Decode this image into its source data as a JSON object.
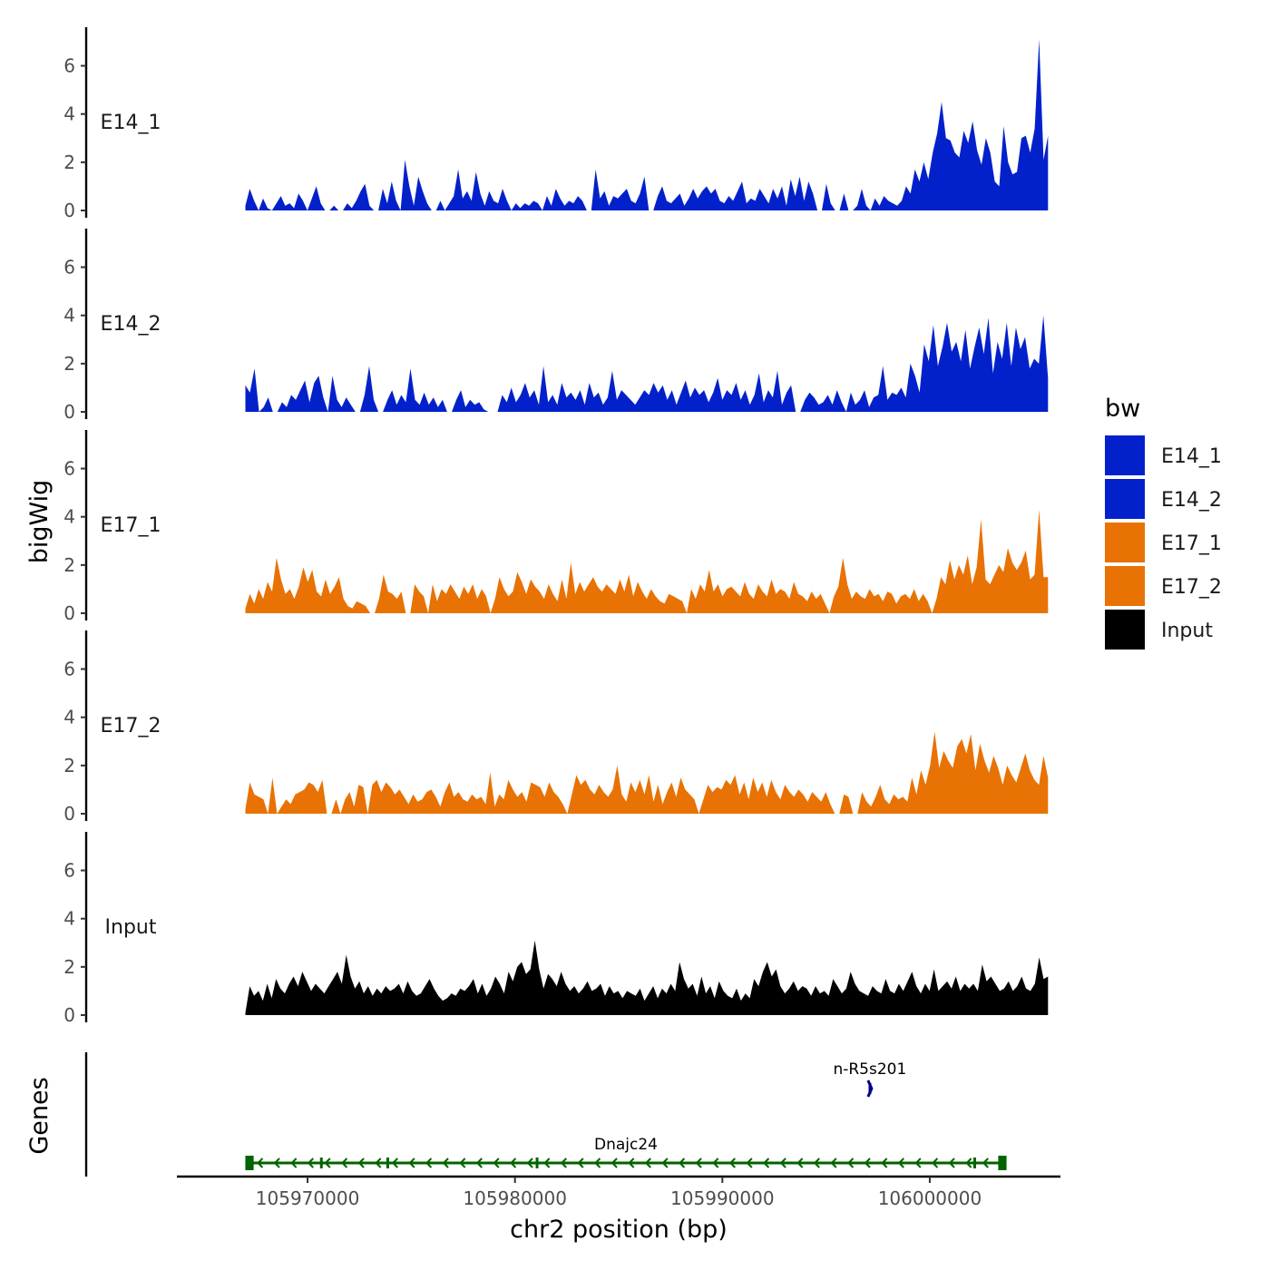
{
  "chart_data": {
    "type": "area",
    "title": "",
    "ylabel": "bigWig",
    "genes_label": "Genes",
    "xlabel": "chr2 position (bp)",
    "xlim": [
      105963700,
      106006300
    ],
    "data_x_range": [
      105967000,
      106005700
    ],
    "ylim": [
      -0.3,
      7.6
    ],
    "yticks": [
      0,
      2,
      4,
      6
    ],
    "ytick_labels": [
      "0",
      "2",
      "4",
      "6"
    ],
    "xticks": [
      105970000,
      105980000,
      105990000,
      106000000
    ],
    "xtick_labels": [
      "105970000",
      "105980000",
      "105990000",
      "106000000"
    ],
    "legend": {
      "title": "bw",
      "position": "right",
      "entries": [
        {
          "label": "E14_1",
          "color": "#0321cb"
        },
        {
          "label": "E14_2",
          "color": "#0321cb"
        },
        {
          "label": "E17_1",
          "color": "#e87203"
        },
        {
          "label": "E17_2",
          "color": "#e87203"
        },
        {
          "label": "Input",
          "color": "#000000"
        }
      ]
    },
    "series": [
      {
        "name": "E14_1",
        "color": "#0321cb",
        "values": [
          0.2,
          0.9,
          0.4,
          0.0,
          0.5,
          0.1,
          0.0,
          0.3,
          0.6,
          0.2,
          0.3,
          0.1,
          0.7,
          0.4,
          0.0,
          0.5,
          1.0,
          0.3,
          0.0,
          0.0,
          0.2,
          0.0,
          0.0,
          0.3,
          0.1,
          0.4,
          0.8,
          1.1,
          0.2,
          0.0,
          0.0,
          0.9,
          0.3,
          1.2,
          0.4,
          0.0,
          2.1,
          1.0,
          0.2,
          1.4,
          0.8,
          0.3,
          0.0,
          0.0,
          0.4,
          0.0,
          0.3,
          0.6,
          1.7,
          0.5,
          0.8,
          0.4,
          1.6,
          0.7,
          0.2,
          0.8,
          0.4,
          0.3,
          0.9,
          0.4,
          0.0,
          0.3,
          0.1,
          0.3,
          0.2,
          0.4,
          0.3,
          0.0,
          0.6,
          0.2,
          0.9,
          0.5,
          0.2,
          0.4,
          0.3,
          0.6,
          0.4,
          0.0,
          0.0,
          1.7,
          0.5,
          0.8,
          0.2,
          0.6,
          0.5,
          0.7,
          0.9,
          0.4,
          0.3,
          0.7,
          1.4,
          0.0,
          0.0,
          0.6,
          1.0,
          0.4,
          0.3,
          0.5,
          0.7,
          0.2,
          0.5,
          0.9,
          0.5,
          0.8,
          1.0,
          0.7,
          0.9,
          0.4,
          0.3,
          0.6,
          0.4,
          0.8,
          1.2,
          0.3,
          0.5,
          0.4,
          0.9,
          0.6,
          0.3,
          0.9,
          0.5,
          1.0,
          0.2,
          1.3,
          0.6,
          1.4,
          0.4,
          1.2,
          0.7,
          0.0,
          0.0,
          1.1,
          0.3,
          0.0,
          0.0,
          0.7,
          0.0,
          0.0,
          0.2,
          0.9,
          0.2,
          0.0,
          0.5,
          0.2,
          0.6,
          0.4,
          0.3,
          0.2,
          0.4,
          1.0,
          0.7,
          1.7,
          1.2,
          2.0,
          1.3,
          2.4,
          3.2,
          4.5,
          3.0,
          2.9,
          2.4,
          2.2,
          3.3,
          2.8,
          3.7,
          2.5,
          1.9,
          3.0,
          2.4,
          1.2,
          1.0,
          3.5,
          2.0,
          1.5,
          1.6,
          3.0,
          3.1,
          2.4,
          3.4,
          7.1,
          2.1,
          3.1
        ]
      },
      {
        "name": "E14_2",
        "color": "#0321cb",
        "values": [
          1.1,
          0.8,
          1.8,
          0.0,
          0.2,
          0.6,
          0.0,
          0.0,
          0.4,
          0.2,
          0.7,
          0.5,
          0.9,
          1.3,
          0.4,
          1.2,
          1.5,
          0.6,
          0.0,
          1.5,
          0.5,
          0.2,
          0.6,
          0.3,
          0.0,
          0.0,
          0.7,
          1.9,
          0.5,
          0.0,
          0.0,
          0.5,
          0.9,
          0.3,
          0.7,
          0.4,
          1.8,
          0.5,
          0.3,
          0.8,
          0.3,
          0.6,
          0.2,
          0.5,
          0.0,
          0.0,
          0.5,
          0.9,
          0.2,
          0.5,
          0.3,
          0.4,
          0.1,
          0.0,
          0.0,
          0.0,
          0.7,
          0.4,
          1.0,
          0.4,
          0.7,
          1.2,
          0.6,
          0.9,
          0.3,
          1.9,
          0.4,
          0.7,
          0.3,
          1.2,
          0.6,
          0.8,
          0.5,
          0.9,
          0.3,
          1.2,
          0.6,
          0.8,
          0.3,
          0.6,
          1.7,
          0.5,
          0.9,
          0.7,
          0.5,
          0.3,
          0.6,
          0.9,
          0.7,
          1.2,
          0.8,
          1.1,
          0.5,
          0.9,
          0.3,
          0.8,
          1.3,
          0.6,
          1.0,
          0.7,
          0.9,
          0.4,
          0.8,
          1.4,
          0.5,
          0.9,
          0.7,
          1.2,
          0.5,
          0.9,
          0.3,
          0.7,
          1.6,
          0.4,
          0.9,
          0.6,
          1.7,
          0.3,
          0.8,
          1.1,
          0.0,
          0.0,
          0.5,
          0.8,
          0.6,
          0.3,
          0.4,
          0.7,
          0.3,
          0.9,
          0.4,
          0.0,
          0.8,
          0.3,
          0.5,
          0.9,
          0.2,
          0.6,
          0.7,
          1.9,
          0.5,
          0.8,
          0.7,
          1.0,
          0.6,
          2.0,
          1.5,
          0.8,
          2.8,
          2.1,
          3.6,
          1.9,
          2.7,
          3.7,
          2.5,
          2.9,
          2.1,
          3.4,
          1.8,
          2.7,
          3.5,
          2.4,
          3.9,
          1.6,
          2.9,
          2.2,
          3.7,
          1.9,
          3.5,
          2.6,
          3.1,
          1.8,
          2.2,
          2.0,
          4.0,
          1.4
        ]
      },
      {
        "name": "E17_1",
        "color": "#e87203",
        "values": [
          0.2,
          0.8,
          0.4,
          1.0,
          0.6,
          1.3,
          0.9,
          2.3,
          1.4,
          0.8,
          1.0,
          0.6,
          1.1,
          1.9,
          1.3,
          1.8,
          0.9,
          0.7,
          1.4,
          0.8,
          1.1,
          1.5,
          0.6,
          0.3,
          0.2,
          0.5,
          0.4,
          0.3,
          0.0,
          0.0,
          0.6,
          1.6,
          0.9,
          0.8,
          0.6,
          0.9,
          0.0,
          0.0,
          1.2,
          0.9,
          0.7,
          0.0,
          1.2,
          0.5,
          1.0,
          0.8,
          1.2,
          0.9,
          0.6,
          1.1,
          0.8,
          1.2,
          0.6,
          1.0,
          0.7,
          0.0,
          0.6,
          1.5,
          1.0,
          0.7,
          0.9,
          1.7,
          1.3,
          0.8,
          1.4,
          1.1,
          0.9,
          0.6,
          1.2,
          0.8,
          0.5,
          1.4,
          0.6,
          2.1,
          0.8,
          1.3,
          0.9,
          1.2,
          1.5,
          1.1,
          0.9,
          1.2,
          1.0,
          0.8,
          1.4,
          0.9,
          1.6,
          0.7,
          1.3,
          0.9,
          0.6,
          1.0,
          0.7,
          0.5,
          0.4,
          0.8,
          0.7,
          0.6,
          0.5,
          0.0,
          1.0,
          0.6,
          1.2,
          0.9,
          1.8,
          0.9,
          1.2,
          0.7,
          1.0,
          1.1,
          0.9,
          0.7,
          1.3,
          0.8,
          0.6,
          1.2,
          0.9,
          0.7,
          1.4,
          0.8,
          1.0,
          0.9,
          0.6,
          1.3,
          0.8,
          0.7,
          0.5,
          0.9,
          0.6,
          0.8,
          0.4,
          0.0,
          0.7,
          1.1,
          2.3,
          1.2,
          0.6,
          0.9,
          0.7,
          0.6,
          1.0,
          0.7,
          0.8,
          0.5,
          0.9,
          0.8,
          0.4,
          0.7,
          0.8,
          0.6,
          1.0,
          0.5,
          0.8,
          0.5,
          0.0,
          0.6,
          1.5,
          1.2,
          2.2,
          1.4,
          2.0,
          1.6,
          2.4,
          1.2,
          1.9,
          3.9,
          1.4,
          1.2,
          1.6,
          2.0,
          1.7,
          2.7,
          2.1,
          1.8,
          2.1,
          2.6,
          1.4,
          1.6,
          4.3,
          1.5,
          1.5
        ]
      },
      {
        "name": "E17_2",
        "color": "#e87203",
        "values": [
          0.2,
          1.3,
          0.8,
          0.7,
          0.6,
          0.0,
          1.5,
          0.0,
          0.3,
          0.6,
          0.4,
          0.8,
          0.9,
          1.0,
          1.3,
          1.2,
          0.9,
          1.4,
          0.0,
          0.0,
          0.6,
          0.0,
          0.6,
          0.9,
          0.3,
          1.2,
          1.1,
          0.0,
          1.2,
          1.4,
          0.9,
          1.3,
          1.1,
          0.8,
          1.0,
          0.7,
          0.4,
          0.8,
          0.5,
          0.6,
          0.9,
          1.0,
          0.7,
          0.3,
          0.9,
          1.3,
          0.7,
          0.9,
          0.6,
          0.5,
          0.8,
          0.6,
          0.7,
          0.4,
          1.7,
          0.3,
          0.8,
          0.6,
          1.4,
          1.0,
          0.7,
          0.9,
          0.5,
          1.3,
          1.2,
          1.1,
          0.7,
          1.3,
          0.9,
          0.7,
          0.4,
          0.0,
          0.8,
          1.6,
          1.2,
          1.4,
          1.0,
          0.8,
          1.2,
          0.9,
          0.7,
          1.0,
          2.0,
          0.8,
          0.5,
          1.3,
          0.9,
          1.4,
          0.8,
          1.6,
          0.5,
          1.2,
          0.4,
          0.9,
          1.3,
          0.7,
          1.5,
          1.0,
          0.8,
          0.6,
          0.0,
          0.6,
          1.2,
          0.9,
          1.1,
          1.0,
          1.4,
          1.2,
          1.6,
          0.8,
          1.3,
          0.6,
          1.5,
          0.9,
          1.3,
          0.7,
          1.4,
          0.9,
          0.6,
          1.2,
          0.9,
          0.7,
          1.0,
          0.8,
          0.5,
          0.9,
          0.7,
          0.5,
          0.9,
          0.4,
          0.0,
          0.0,
          0.8,
          0.7,
          0.0,
          0.0,
          0.9,
          0.5,
          0.3,
          0.7,
          1.2,
          0.6,
          0.4,
          0.8,
          0.6,
          0.7,
          0.5,
          1.5,
          0.8,
          1.8,
          1.2,
          2.0,
          3.4,
          1.9,
          2.6,
          2.2,
          1.9,
          2.8,
          3.1,
          2.5,
          3.3,
          1.8,
          2.9,
          2.2,
          1.7,
          2.4,
          1.9,
          1.2,
          2.0,
          1.6,
          1.3,
          1.9,
          2.5,
          1.8,
          1.4,
          1.2,
          2.4,
          1.5
        ]
      },
      {
        "name": "Input",
        "color": "#000000",
        "values": [
          0.1,
          1.2,
          0.8,
          1.0,
          0.6,
          1.3,
          0.7,
          1.5,
          1.1,
          0.9,
          1.3,
          1.6,
          1.2,
          1.8,
          1.4,
          1.0,
          1.3,
          1.1,
          0.9,
          1.2,
          1.5,
          1.8,
          1.3,
          2.5,
          1.6,
          1.1,
          1.4,
          0.9,
          1.2,
          0.8,
          1.1,
          0.9,
          1.2,
          1.0,
          1.1,
          1.3,
          0.9,
          1.4,
          1.0,
          0.8,
          0.9,
          1.2,
          1.5,
          1.1,
          0.8,
          0.6,
          0.7,
          0.9,
          0.8,
          1.1,
          1.0,
          1.2,
          1.5,
          0.9,
          1.3,
          0.8,
          1.1,
          1.6,
          1.3,
          0.9,
          1.8,
          1.4,
          2.0,
          2.2,
          1.7,
          1.9,
          3.1,
          1.9,
          1.1,
          1.7,
          1.5,
          1.2,
          1.8,
          1.3,
          1.0,
          1.2,
          0.9,
          1.1,
          1.4,
          1.0,
          1.1,
          1.3,
          0.8,
          1.2,
          0.9,
          1.0,
          0.7,
          1.0,
          0.9,
          0.8,
          1.1,
          0.6,
          0.9,
          1.2,
          0.7,
          1.1,
          0.9,
          1.3,
          1.0,
          2.2,
          1.5,
          1.1,
          1.3,
          0.8,
          1.6,
          0.9,
          1.2,
          0.7,
          1.4,
          1.0,
          0.8,
          0.7,
          1.1,
          0.6,
          0.9,
          0.7,
          1.5,
          1.2,
          1.8,
          2.2,
          1.6,
          1.9,
          1.2,
          0.9,
          1.1,
          1.4,
          1.0,
          1.2,
          1.1,
          0.8,
          1.2,
          0.9,
          1.0,
          0.8,
          1.5,
          1.2,
          0.9,
          1.1,
          1.8,
          1.3,
          1.0,
          0.9,
          0.8,
          1.2,
          1.0,
          0.9,
          1.5,
          1.0,
          0.9,
          1.3,
          1.0,
          1.4,
          1.8,
          1.2,
          0.9,
          1.3,
          1.0,
          1.9,
          1.0,
          1.2,
          1.4,
          1.1,
          1.6,
          1.0,
          1.3,
          1.1,
          1.3,
          1.0,
          2.1,
          1.4,
          1.6,
          1.3,
          1.0,
          1.1,
          1.4,
          1.0,
          1.2,
          1.6,
          1.1,
          1.0,
          1.3,
          2.4,
          1.5,
          1.6
        ]
      }
    ],
    "genes": [
      {
        "name": "Dnajc24",
        "color": "#006400",
        "strand": "-",
        "start": 105967000,
        "end": 106003700,
        "exons": [
          [
            105967000,
            105967400
          ],
          [
            105970600,
            105970650
          ],
          [
            105973800,
            105973900
          ],
          [
            105981000,
            105981080
          ],
          [
            106002100,
            106002180
          ],
          [
            106003300,
            106003700
          ]
        ]
      },
      {
        "name": "n-R5s201",
        "color": "#00008b",
        "strand": "+",
        "start": 105997050,
        "end": 105997170,
        "exons": [
          [
            105997050,
            105997170
          ]
        ]
      }
    ]
  }
}
